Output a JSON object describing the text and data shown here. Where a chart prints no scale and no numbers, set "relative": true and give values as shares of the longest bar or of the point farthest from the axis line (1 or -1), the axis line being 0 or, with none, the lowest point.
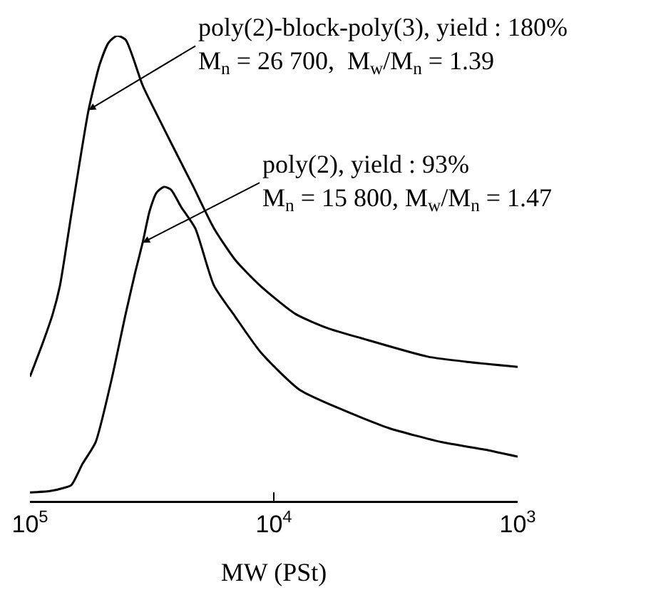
{
  "chart_data": {
    "type": "line",
    "relative": true,
    "log": "x",
    "xlabel": "MW (PSt)",
    "xlim": [
      100000,
      1000
    ],
    "xticks": [
      {
        "value": 100000,
        "label": "10$^{5}$"
      },
      {
        "value": 10000,
        "label": "10$^{4}$"
      },
      {
        "value": 1000,
        "label": "10$^{3}$"
      }
    ],
    "marker": "none",
    "line_style": "solid",
    "series": [
      {
        "color": "#000000",
        "x": [
          100000,
          88500,
          80600,
          75300,
          67600,
          57500,
          51700,
          47600,
          43900,
          40500,
          34500,
          30200,
          26400,
          21500,
          17600,
          14400,
          11400,
          8170,
          6000,
          4400,
          2340,
          1560,
          1000
        ],
        "values": [
          0.267,
          0.34,
          0.402,
          0.463,
          0.617,
          0.84,
          0.939,
          0.985,
          1,
          0.991,
          0.893,
          0.831,
          0.77,
          0.678,
          0.586,
          0.518,
          0.463,
          0.402,
          0.371,
          0.35,
          0.31,
          0.298,
          0.288
        ]
      },
      {
        "color": "#000000",
        "x": [
          100000,
          82800,
          72400,
          67600,
          60800,
          53800,
          46400,
          40500,
          36900,
          34500,
          32300,
          30200,
          28200,
          26400,
          24000,
          21000,
          17600,
          14400,
          11300,
          7850,
          5240,
          3360,
          2040,
          1360,
          1000
        ],
        "values": [
          0.018,
          0.021,
          0.028,
          0.034,
          0.08,
          0.126,
          0.258,
          0.402,
          0.494,
          0.555,
          0.623,
          0.663,
          0.675,
          0.669,
          0.632,
          0.586,
          0.463,
          0.396,
          0.319,
          0.239,
          0.196,
          0.156,
          0.126,
          0.11,
          0.095
        ]
      }
    ],
    "annotations": [
      {
        "text": "poly(2)-block-poly(3), yield : 180%\nM$_{n}$ = 26 700,  M$_{w}$/M$_{n}$ = 1.39",
        "x": 57500,
        "y": 0.84
      },
      {
        "text": "poly(2), yield : 93%\nM$_{n}$ = 15 800, M$_{w}$/M$_{n}$ = 1.47",
        "x": 34500,
        "y": 0.555
      }
    ]
  }
}
